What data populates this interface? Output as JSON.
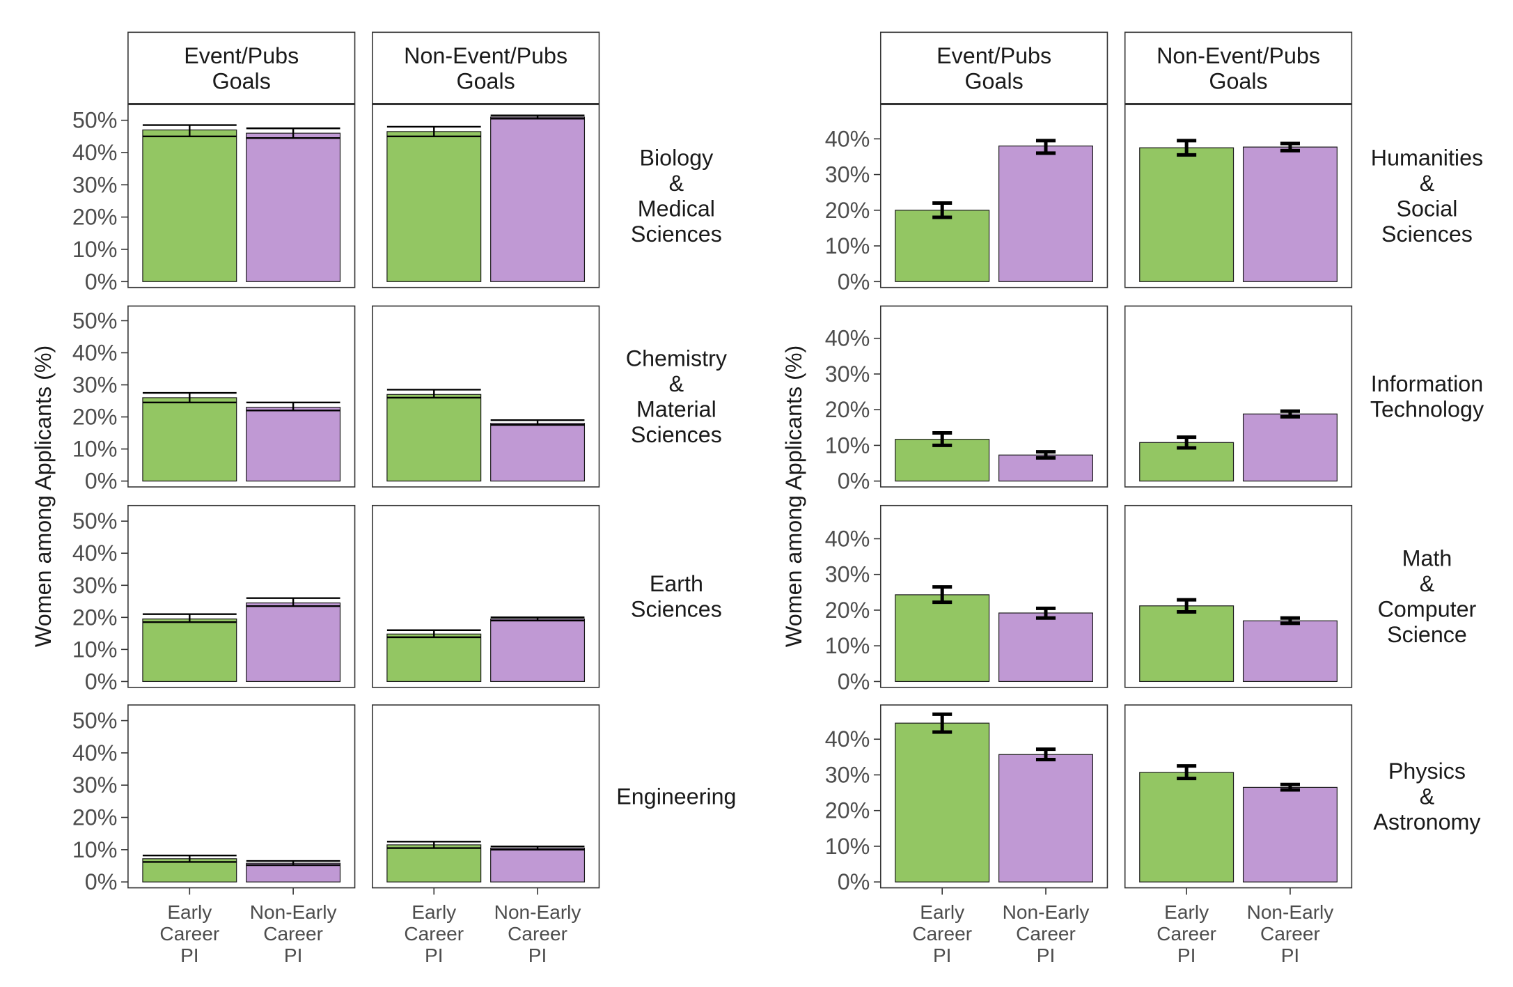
{
  "chart_data": [
    {
      "type": "bar",
      "panel": "left",
      "ylabel": "Women among Applicants (%)",
      "ylim": [
        0,
        0.5
      ],
      "yticks": [
        "0%",
        "10%",
        "20%",
        "30%",
        "40%",
        "50%"
      ],
      "columns": [
        "Event/Pubs\nGoals",
        "Non-Event/Pubs\nGoals"
      ],
      "categories": [
        "Early\nCareer\nPI",
        "Non-Early\nCareer\nPI"
      ],
      "colors": [
        "#93c663",
        "#c099d4"
      ],
      "rows": [
        {
          "label": "Biology\n&\nMedical\nSciences",
          "cells": [
            {
              "values": [
                0.47,
                0.46
              ],
              "err_low": [
                0.45,
                0.445
              ],
              "err_high": [
                0.485,
                0.475
              ]
            },
            {
              "values": [
                0.465,
                0.51
              ],
              "err_low": [
                0.45,
                0.505
              ],
              "err_high": [
                0.48,
                0.515
              ]
            }
          ]
        },
        {
          "label": "Chemistry\n&\nMaterial\nSciences",
          "cells": [
            {
              "values": [
                0.26,
                0.23
              ],
              "err_low": [
                0.245,
                0.22
              ],
              "err_high": [
                0.275,
                0.245
              ]
            },
            {
              "values": [
                0.27,
                0.18
              ],
              "err_low": [
                0.26,
                0.175
              ],
              "err_high": [
                0.285,
                0.19
              ]
            }
          ]
        },
        {
          "label": "Earth\nSciences",
          "cells": [
            {
              "values": [
                0.195,
                0.245
              ],
              "err_low": [
                0.185,
                0.235
              ],
              "err_high": [
                0.21,
                0.26
              ]
            },
            {
              "values": [
                0.148,
                0.195
              ],
              "err_low": [
                0.138,
                0.19
              ],
              "err_high": [
                0.16,
                0.2
              ]
            }
          ]
        },
        {
          "label": "Engineering",
          "cells": [
            {
              "values": [
                0.072,
                0.058
              ],
              "err_low": [
                0.062,
                0.052
              ],
              "err_high": [
                0.082,
                0.065
              ]
            },
            {
              "values": [
                0.115,
                0.105
              ],
              "err_low": [
                0.105,
                0.1
              ],
              "err_high": [
                0.125,
                0.11
              ]
            }
          ]
        }
      ]
    },
    {
      "type": "bar",
      "panel": "right",
      "ylabel": "Women among Applicants (%)",
      "ylim": [
        0,
        0.47
      ],
      "yticks": [
        "0%",
        "10%",
        "20%",
        "30%",
        "40%"
      ],
      "columns": [
        "Event/Pubs\nGoals",
        "Non-Event/Pubs\nGoals"
      ],
      "categories": [
        "Early\nCareer\nPI",
        "Non-Early\nCareer\nPI"
      ],
      "colors": [
        "#93c663",
        "#c099d4"
      ],
      "rows": [
        {
          "label": "Humanities\n&\nSocial\nSciences",
          "cells": [
            {
              "values": [
                0.2,
                0.38
              ],
              "err_low": [
                0.18,
                0.36
              ],
              "err_high": [
                0.22,
                0.395
              ]
            },
            {
              "values": [
                0.375,
                0.377
              ],
              "err_low": [
                0.355,
                0.367
              ],
              "err_high": [
                0.395,
                0.387
              ]
            }
          ]
        },
        {
          "label": "Information\nTechnology",
          "cells": [
            {
              "values": [
                0.117,
                0.073
              ],
              "err_low": [
                0.1,
                0.065
              ],
              "err_high": [
                0.135,
                0.082
              ]
            },
            {
              "values": [
                0.108,
                0.188
              ],
              "err_low": [
                0.093,
                0.18
              ],
              "err_high": [
                0.123,
                0.196
              ]
            }
          ]
        },
        {
          "label": "Math\n&\nComputer\nScience",
          "cells": [
            {
              "values": [
                0.243,
                0.192
              ],
              "err_low": [
                0.222,
                0.178
              ],
              "err_high": [
                0.265,
                0.205
              ]
            },
            {
              "values": [
                0.212,
                0.17
              ],
              "err_low": [
                0.195,
                0.163
              ],
              "err_high": [
                0.229,
                0.178
              ]
            }
          ]
        },
        {
          "label": "Physics\n&\nAstronomy",
          "cells": [
            {
              "values": [
                0.445,
                0.357
              ],
              "err_low": [
                0.42,
                0.343
              ],
              "err_high": [
                0.47,
                0.372
              ]
            },
            {
              "values": [
                0.307,
                0.265
              ],
              "err_low": [
                0.29,
                0.258
              ],
              "err_high": [
                0.325,
                0.273
              ]
            }
          ]
        }
      ]
    }
  ]
}
